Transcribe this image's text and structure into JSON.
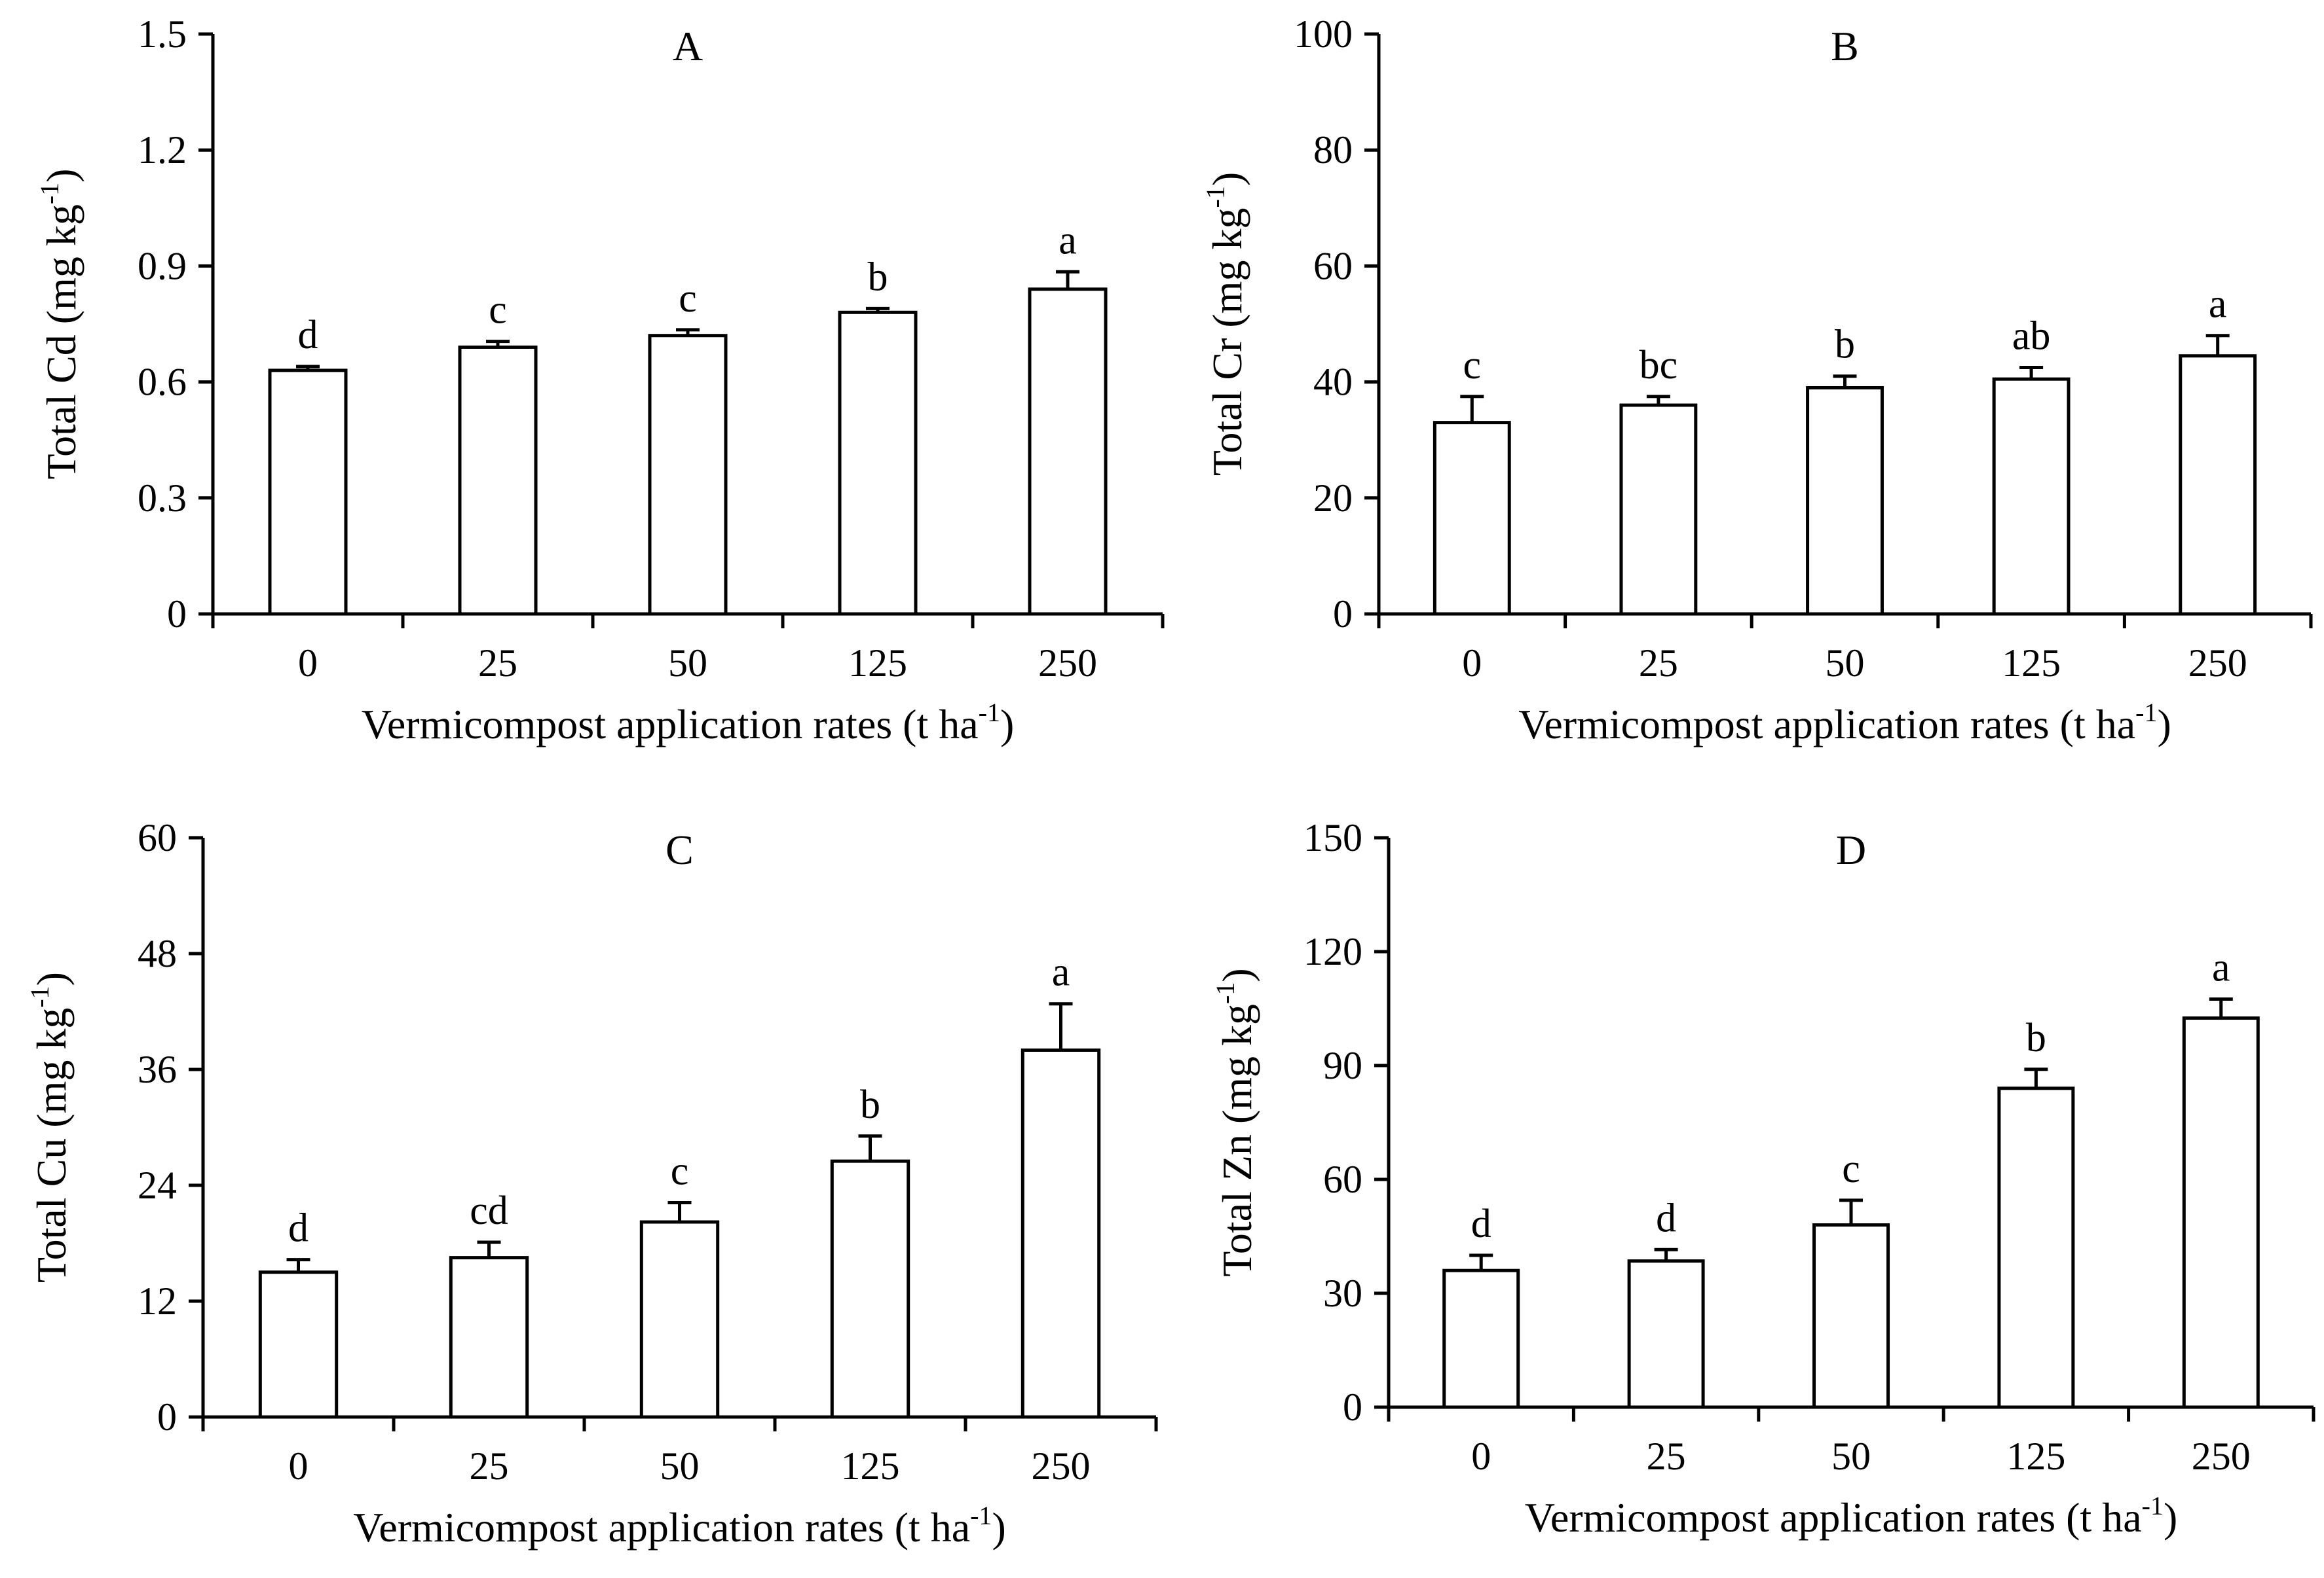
{
  "chart_data": [
    {
      "type": "bar",
      "title": "A",
      "categories": [
        "0",
        "25",
        "50",
        "125",
        "250"
      ],
      "values": [
        0.63,
        0.69,
        0.72,
        0.78,
        0.84
      ],
      "errors": [
        0.01,
        0.015,
        0.015,
        0.01,
        0.045
      ],
      "letters": [
        "d",
        "c",
        "c",
        "b",
        "a"
      ],
      "ylim": [
        0,
        1.5
      ],
      "yticks": [
        "0",
        "0.3",
        "0.6",
        "0.9",
        "1.2",
        "1.5"
      ],
      "ylabel": {
        "main": "Total Cd (mg kg",
        "sup": "-1",
        "close": ")"
      },
      "xlabel": {
        "main": "Vermicompost application rates (t ha",
        "sup": "-1",
        "close": ")"
      }
    },
    {
      "type": "bar",
      "title": "B",
      "categories": [
        "0",
        "25",
        "50",
        "125",
        "250"
      ],
      "values": [
        33,
        36,
        39,
        40.5,
        44.5
      ],
      "errors": [
        4.5,
        1.5,
        2.0,
        2.0,
        3.5
      ],
      "letters": [
        "c",
        "bc",
        "b",
        "ab",
        "a"
      ],
      "ylim": [
        0,
        100
      ],
      "yticks": [
        "0",
        "20",
        "40",
        "60",
        "80",
        "100"
      ],
      "ylabel": {
        "main": "Total Cr (mg kg",
        "sup": "-1",
        "close": ")"
      },
      "xlabel": {
        "main": "Vermicompost application rates (t ha",
        "sup": "-1",
        "close": ")"
      }
    },
    {
      "type": "bar",
      "title": "C",
      "categories": [
        "0",
        "25",
        "50",
        "125",
        "250"
      ],
      "values": [
        15,
        16.5,
        20.2,
        26.5,
        38
      ],
      "errors": [
        1.3,
        1.6,
        2.0,
        2.6,
        4.8
      ],
      "letters": [
        "d",
        "cd",
        "c",
        "b",
        "a"
      ],
      "ylim": [
        0,
        60
      ],
      "yticks": [
        "0",
        "12",
        "24",
        "36",
        "48",
        "60"
      ],
      "ylabel": {
        "main": "Total Cu (mg kg",
        "sup": "-1",
        "close": ")"
      },
      "xlabel": {
        "main": "Vermicompost application rates (t ha",
        "sup": "-1",
        "close": ")"
      }
    },
    {
      "type": "bar",
      "title": "D",
      "categories": [
        "0",
        "25",
        "50",
        "125",
        "250"
      ],
      "values": [
        36,
        38.5,
        48,
        84,
        102.5
      ],
      "errors": [
        4,
        3,
        6.5,
        5,
        5
      ],
      "letters": [
        "d",
        "d",
        "c",
        "b",
        "a"
      ],
      "ylim": [
        0,
        150
      ],
      "yticks": [
        "0",
        "30",
        "60",
        "90",
        "120",
        "150"
      ],
      "ylabel": {
        "main": "Total Zn (mg kg",
        "sup": "-1",
        "close": ")"
      },
      "xlabel": {
        "main": "Vermicompost application rates (t ha",
        "sup": "-1",
        "close": ")"
      }
    }
  ]
}
